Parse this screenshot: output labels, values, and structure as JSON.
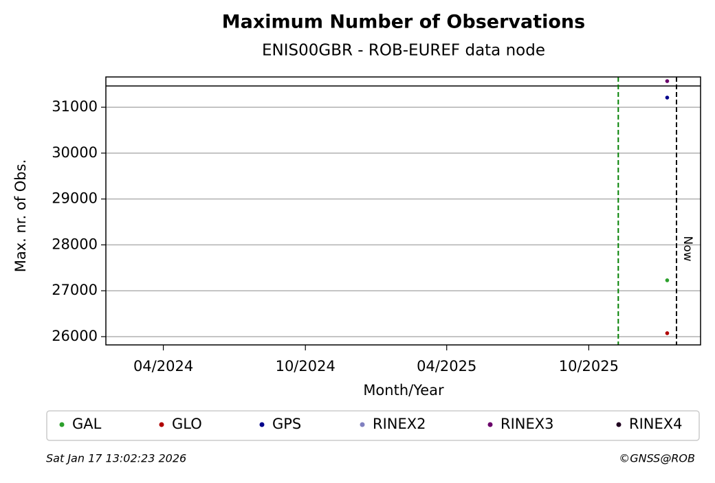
{
  "chart_data": {
    "type": "scatter",
    "title": "Maximum Number of Observations",
    "subtitle": "ENIS00GBR - ROB-EUREF data node",
    "x_label": "Month/Year",
    "y_label": "Max. nr. of Obs.",
    "xlim": [
      "2024-01-18",
      "2026-02-22"
    ],
    "xticks": [
      {
        "value": "2024-04-01",
        "label": "04/2024"
      },
      {
        "value": "2024-10-01",
        "label": "10/2024"
      },
      {
        "value": "2025-04-01",
        "label": "04/2025"
      },
      {
        "value": "2025-10-01",
        "label": "10/2025"
      }
    ],
    "ylim": [
      25820,
      31660
    ],
    "yticks": [
      26000,
      27000,
      28000,
      29000,
      30000,
      31000
    ],
    "grid": true,
    "hline": 31464,
    "vlines": [
      {
        "x": "2025-11-08",
        "color": "#008000"
      },
      {
        "x": "2026-01-22",
        "color": "#000000",
        "label": "Now"
      }
    ],
    "series": [
      {
        "name": "GAL",
        "color": "#2ca02c",
        "x": [
          "2026-01-10"
        ],
        "values": [
          27228
        ]
      },
      {
        "name": "GLO",
        "color": "#b00000",
        "x": [
          "2026-01-10"
        ],
        "values": [
          26075
        ]
      },
      {
        "name": "GPS",
        "color": "#00008b",
        "x": [
          "2026-01-10"
        ],
        "values": [
          31210
        ]
      },
      {
        "name": "RINEX2",
        "color": "#8080c0",
        "x": [],
        "values": []
      },
      {
        "name": "RINEX3",
        "color": "#6a006a",
        "x": [
          "2026-01-10"
        ],
        "values": [
          31569
        ]
      },
      {
        "name": "RINEX4",
        "color": "#200020",
        "x": [],
        "values": []
      }
    ],
    "timestamp": "Sat Jan 17 13:02:23 2026",
    "credit": "©GNSS@ROB"
  }
}
